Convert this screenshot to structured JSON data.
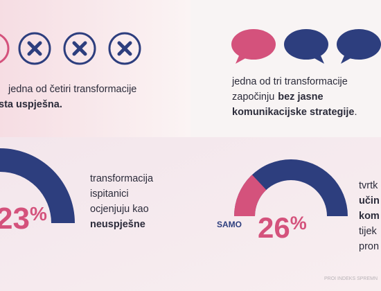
{
  "top_left": {
    "line1": "jedna od četiri transformacije",
    "line2": "sta uspješna."
  },
  "top_right": {
    "line1": "jedna od tri transformacije",
    "line2_a": "započinju",
    "line2_b": "bez jasne",
    "line3_a": "komunikacijske strategije",
    "line3_b": "."
  },
  "bottom_left": {
    "percent": 23,
    "unit": "%",
    "lines": [
      "transformacija",
      "ispitanici",
      "ocjenjuju kao"
    ],
    "bold": "neuspješne"
  },
  "bottom_right": {
    "prefix": "SAMO",
    "percent": 26,
    "unit": "%",
    "lines": [
      "tvrtk",
      "učin",
      "kom",
      "tijek",
      "pron"
    ]
  },
  "footer": "PROI INDEKS SPREMN"
}
